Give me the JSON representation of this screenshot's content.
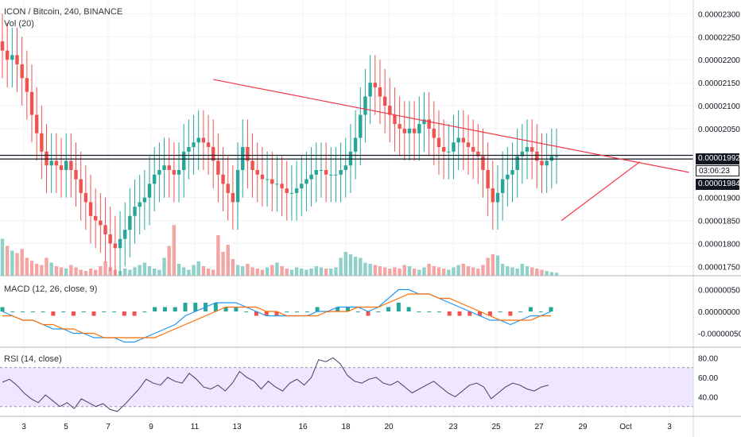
{
  "header": {
    "symbol_line": "ICON / Bitcoin, 240, BINANCE",
    "volume_label": "Vol (20)",
    "macd_label": "MACD (12, 26, close, 9)",
    "rsi_label": "RSI (14, close)"
  },
  "price_tags": {
    "upper": "0.00001992",
    "countdown": "03:06:23",
    "lower": "0.00001984"
  },
  "colors": {
    "up": "#26a69a",
    "down": "#ef5350",
    "volume_up": "#8fd1c9",
    "volume_down": "#f3a5a4",
    "trendline": "#f23645",
    "macd_line": "#2196f3",
    "signal_line": "#ff6d00",
    "rsi_line": "#4a3a6b",
    "rsi_band": "#f0e6ff",
    "grid": "#f0f3fa"
  },
  "chart_data": [
    {
      "type": "candlestick",
      "name": "price",
      "title": "ICON / Bitcoin, 240, BINANCE",
      "ylim": [
        1.73e-05,
        2.33e-05
      ],
      "y_ticks": [
        "0.00002300",
        "0.00002250",
        "0.00002200",
        "0.00002150",
        "0.00002100",
        "0.00002050",
        "0.00001900",
        "0.00001850",
        "0.00001800",
        "0.00001750"
      ],
      "x_ticks": [
        "3",
        "5",
        "7",
        "9",
        "11",
        "13",
        "16",
        "18",
        "20",
        "23",
        "25",
        "27",
        "29",
        "Oct",
        "3"
      ],
      "horizontal_levels": [
        1.992e-05,
        1.984e-05
      ],
      "trendlines": [
        {
          "from": [
            43,
            2.157e-05
          ],
          "to": [
            140,
            1.955e-05
          ]
        },
        {
          "from": [
            114,
            1.85e-05
          ],
          "to": [
            130,
            1.978e-05
          ]
        }
      ],
      "close": [
        2.22e-05,
        2.2e-05,
        2.21e-05,
        2.19e-05,
        2.16e-05,
        2.13e-05,
        2.08e-05,
        2.04e-05,
        2e-05,
        1.97e-05,
        1.98e-05,
        1.97e-05,
        1.96e-05,
        1.98e-05,
        1.96e-05,
        1.94e-05,
        1.91e-05,
        1.89e-05,
        1.86e-05,
        1.85e-05,
        1.84e-05,
        1.82e-05,
        1.8e-05,
        1.79e-05,
        1.81e-05,
        1.83e-05,
        1.86e-05,
        1.88e-05,
        1.89e-05,
        1.9e-05,
        1.93e-05,
        1.95e-05,
        1.96e-05,
        1.97e-05,
        1.96e-05,
        1.95e-05,
        1.96e-05,
        2e-05,
        2.01e-05,
        2.02e-05,
        2.03e-05,
        2.02e-05,
        2.01e-05,
        1.98e-05,
        1.95e-05,
        1.93e-05,
        1.91e-05,
        1.89e-05,
        1.96e-05,
        2.01e-05,
        1.98e-05,
        1.96e-05,
        1.95e-05,
        1.94e-05,
        1.94e-05,
        1.93e-05,
        1.93e-05,
        1.92e-05,
        1.91e-05,
        1.91e-05,
        1.92e-05,
        1.93e-05,
        1.94e-05,
        1.95e-05,
        1.96e-05,
        1.96e-05,
        1.95e-05,
        1.95e-05,
        1.95e-05,
        1.96e-05,
        1.97e-05,
        2e-05,
        2.03e-05,
        2.08e-05,
        2.12e-05,
        2.15e-05,
        2.14e-05,
        2.12e-05,
        2.1e-05,
        2.08e-05,
        2.06e-05,
        2.05e-05,
        2.04e-05,
        2.05e-05,
        2.04e-05,
        2.06e-05,
        2.07e-05,
        2.05e-05,
        2.03e-05,
        2.01e-05,
        2e-05,
        2e-05,
        2.02e-05,
        2.03e-05,
        2.02e-05,
        2.01e-05,
        2e-05,
        1.99e-05,
        1.96e-05,
        1.92e-05,
        1.89e-05,
        1.91e-05,
        1.94e-05,
        1.95e-05,
        1.96e-05,
        1.99e-05,
        2e-05,
        2.01e-05,
        2e-05,
        1.98e-05,
        1.97e-05,
        1.98e-05,
        1.99e-05,
        1.99e-05
      ],
      "volume": [
        0.62,
        0.5,
        0.42,
        0.38,
        0.45,
        0.3,
        0.25,
        0.2,
        0.18,
        0.3,
        0.22,
        0.16,
        0.14,
        0.12,
        0.18,
        0.14,
        0.1,
        0.08,
        0.12,
        0.1,
        0.16,
        0.24,
        0.14,
        0.1,
        0.08,
        0.12,
        0.1,
        0.14,
        0.18,
        0.22,
        0.16,
        0.12,
        0.1,
        0.3,
        0.5,
        0.85,
        0.2,
        0.14,
        0.1,
        0.18,
        0.24,
        0.16,
        0.12,
        0.1,
        0.68,
        0.4,
        0.52,
        0.28,
        0.18,
        0.16,
        0.2,
        0.14,
        0.12,
        0.1,
        0.14,
        0.18,
        0.22,
        0.16,
        0.12,
        0.1,
        0.14,
        0.12,
        0.1,
        0.12,
        0.16,
        0.14,
        0.12,
        0.12,
        0.14,
        0.3,
        0.4,
        0.36,
        0.32,
        0.3,
        0.22,
        0.2,
        0.18,
        0.16,
        0.14,
        0.12,
        0.14,
        0.12,
        0.18,
        0.16,
        0.12,
        0.1,
        0.14,
        0.2,
        0.16,
        0.14,
        0.12,
        0.1,
        0.14,
        0.18,
        0.2,
        0.16,
        0.14,
        0.12,
        0.18,
        0.3,
        0.36,
        0.34,
        0.2,
        0.16,
        0.14,
        0.12,
        0.2,
        0.16,
        0.14,
        0.12,
        0.1,
        0.08,
        0.06,
        0.05
      ]
    },
    {
      "type": "line",
      "name": "macd",
      "title": "MACD (12, 26, close, 9)",
      "ylim": [
        -8e-07,
        8e-07
      ],
      "y_ticks": [
        "0.00000050",
        "0.00000000",
        "-0.00000050"
      ],
      "series": [
        {
          "name": "MACD",
          "values": [
            0.0,
            -1e-07,
            -2e-07,
            -2e-07,
            -3e-07,
            -4e-07,
            -4e-07,
            -5e-07,
            -5e-07,
            -6e-07,
            -6e-07,
            -6e-07,
            -7e-07,
            -7e-07,
            -6e-07,
            -5e-07,
            -4e-07,
            -3e-07,
            -1e-07,
            0.0,
            1e-07,
            2e-07,
            2e-07,
            2e-07,
            1e-07,
            0.0,
            -1e-07,
            -1e-07,
            -1e-07,
            -1e-07,
            -1e-07,
            0.0,
            0.0,
            1e-07,
            1e-07,
            1e-07,
            0.0,
            1e-07,
            3e-07,
            5e-07,
            5e-07,
            4e-07,
            4e-07,
            3e-07,
            2e-07,
            1e-07,
            0.0,
            -1e-07,
            -2e-07,
            -2e-07,
            -3e-07,
            -2e-07,
            -1e-07,
            -1e-07,
            0.0
          ]
        },
        {
          "name": "Signal",
          "values": [
            -1e-07,
            -1e-07,
            -2e-07,
            -2e-07,
            -3e-07,
            -3e-07,
            -4e-07,
            -4e-07,
            -5e-07,
            -5e-07,
            -6e-07,
            -6e-07,
            -6e-07,
            -6e-07,
            -6e-07,
            -6e-07,
            -5e-07,
            -4e-07,
            -3e-07,
            -2e-07,
            -1e-07,
            0.0,
            1e-07,
            1e-07,
            1e-07,
            1e-07,
            0.0,
            0.0,
            -1e-07,
            -1e-07,
            -1e-07,
            -1e-07,
            0.0,
            0.0,
            0.0,
            1e-07,
            1e-07,
            1e-07,
            2e-07,
            3e-07,
            4e-07,
            4e-07,
            4e-07,
            3e-07,
            3e-07,
            2e-07,
            1e-07,
            0.0,
            -1e-07,
            -2e-07,
            -2e-07,
            -2e-07,
            -2e-07,
            -1e-07,
            -1e-07
          ]
        }
      ]
    },
    {
      "type": "line",
      "name": "rsi",
      "title": "RSI (14, close)",
      "ylim": [
        20,
        90
      ],
      "y_ticks": [
        "80.00",
        "60.00",
        "40.00"
      ],
      "band": [
        30,
        70
      ],
      "values": [
        55,
        58,
        52,
        44,
        38,
        34,
        42,
        36,
        30,
        34,
        28,
        38,
        34,
        30,
        33,
        27,
        25,
        32,
        40,
        48,
        58,
        54,
        52,
        60,
        56,
        54,
        64,
        58,
        50,
        48,
        52,
        46,
        54,
        66,
        60,
        56,
        48,
        56,
        50,
        46,
        54,
        58,
        52,
        60,
        78,
        76,
        80,
        74,
        62,
        56,
        54,
        58,
        60,
        54,
        52,
        56,
        50,
        44,
        48,
        52,
        56,
        50,
        44,
        40,
        46,
        52,
        54,
        50,
        38,
        44,
        50,
        54,
        52,
        48,
        46,
        50,
        52
      ]
    }
  ]
}
